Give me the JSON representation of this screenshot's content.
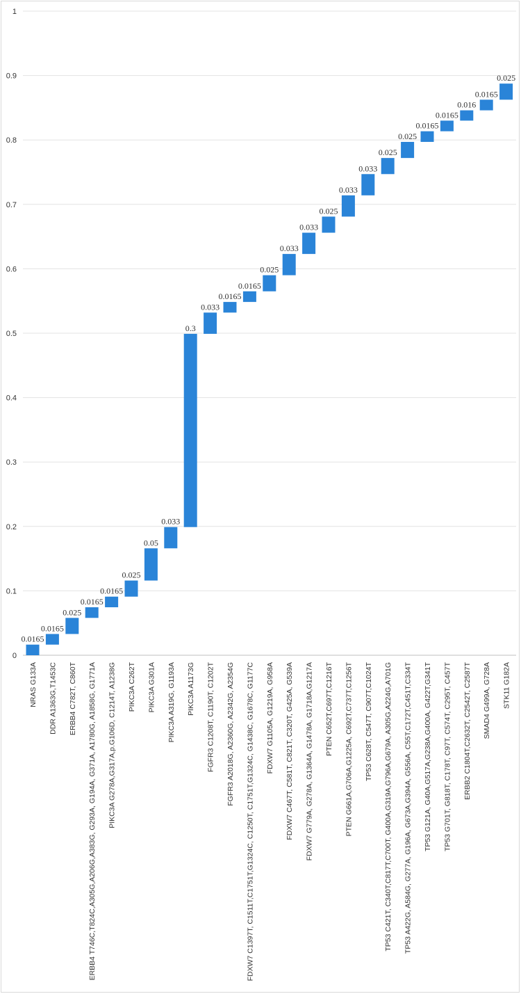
{
  "chart_data": {
    "type": "waterfall",
    "ylim": [
      0,
      1
    ],
    "yticks": [
      "0",
      "0.1",
      "0.2",
      "0.3",
      "0.4",
      "0.5",
      "0.6",
      "0.7",
      "0.8",
      "0.9",
      "1"
    ],
    "bar_color": "#2a84d8",
    "categories": [
      "NRAS G133A",
      "DDR A1363G,T1453C",
      "ERBB4 C782T, C860T",
      "ERBB4 T746C,T824C,A305G,A206G,A383G, G293A, G194A, G371A, A1780G, A1858G, G1771A",
      "PIKC3A G278A,G317A,p.G106D, C1214T, A1238G",
      "PIKC3A C262T",
      "PIKC3A G301A",
      "PIKC3A A319G, G1193A",
      "PIKC3A A1173G",
      "FGFR3 C1208T, C1190T, C1202T",
      "FGFR3 A2018G, A2360G, A2342G, A2354G",
      "FDXW7 C1397T, C1511T,C1751T,G1324C, C1250T, C1751T,G1324C, G1438C, G1678C, G1177C",
      "FDXW7 G1105A, G1219A, G958A",
      "FDXW7 C467T, C581T, C821T, C320T, G425A, G539A",
      "FDXW7 G779A, G278A, G1364A, G1478A, G1718A,G1217A",
      "PTEN C652T,C697T,C1216T",
      "PTEN G661A,G706A,G1225A, C692T,C737T,C1256T",
      "TP53 C628T, C547T, C907T,C1024T",
      "TP53 C421T, C340T,C817T,C700T,  G400A,G319A,G796A,G679A, A305G,A224G,A701G",
      "TP53 A422G, A584G, G277A, G196A, G673A,G394A, G556A, C55T,C172T,C451T,C334T",
      "TP53 G121A, G40A,G517A,G238A,G400A, G422T,G341T",
      "TP53 G701T, G818T, C178T, C97T, C574T, C295T, C457T",
      "ERBB2 C1804T,C2632T, C2542T, C2587T",
      "SMAD4 G499A, G728A",
      "STK11 G182A"
    ],
    "values": [
      0.0165,
      0.0165,
      0.025,
      0.0165,
      0.0165,
      0.025,
      0.05,
      0.033,
      0.3,
      0.033,
      0.0165,
      0.0165,
      0.025,
      0.033,
      0.033,
      0.025,
      0.033,
      0.033,
      0.025,
      0.025,
      0.0165,
      0.0165,
      0.016,
      0.0165,
      0.025
    ],
    "data_labels": [
      "0.0165",
      "0.0165",
      "0.025",
      "0.0165",
      "0.0165",
      "0.025",
      "0.05",
      "0.033",
      "0.3",
      "0.033",
      "0.0165",
      "0.0165",
      "0.025",
      "0.033",
      "0.033",
      "0.025",
      "0.033",
      "0.033",
      "0.025",
      "0.025",
      "0.0165",
      "0.0165",
      "0.016",
      "0.0165",
      "0.025"
    ],
    "grid": true,
    "legend": "none"
  }
}
